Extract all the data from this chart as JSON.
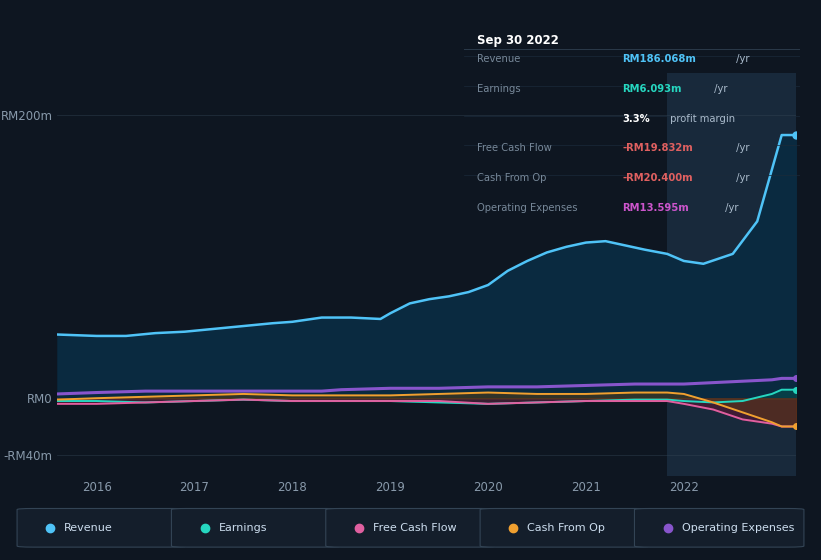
{
  "bg_color": "#0e1621",
  "plot_bg": "#0e1621",
  "highlight_bg": "#162030",
  "title": "Sep 30 2022",
  "ylim": [
    -55,
    230
  ],
  "ytick_positions": [
    -40,
    0,
    200
  ],
  "ytick_labels": [
    "-RM40m",
    "RM0",
    "RM200m"
  ],
  "xlim_start": 2015.6,
  "xlim_end": 2023.15,
  "xticks": [
    2016,
    2017,
    2018,
    2019,
    2020,
    2021,
    2022
  ],
  "highlight_x_start": 2021.83,
  "legend_items": [
    {
      "label": "Revenue",
      "color": "#4fc3f7"
    },
    {
      "label": "Earnings",
      "color": "#26d7c0"
    },
    {
      "label": "Free Cash Flow",
      "color": "#e060a0"
    },
    {
      "label": "Cash From Op",
      "color": "#f0a030"
    },
    {
      "label": "Operating Expenses",
      "color": "#8855cc"
    }
  ],
  "tooltip": {
    "title": "Sep 30 2022",
    "rows": [
      {
        "label": "Revenue",
        "value": "RM186.068m",
        "suffix": " /yr",
        "value_color": "#4fc3f7",
        "bold": true
      },
      {
        "label": "Earnings",
        "value": "RM6.093m",
        "suffix": " /yr",
        "value_color": "#26d7c0",
        "bold": true
      },
      {
        "label": "",
        "value": "3.3%",
        "suffix": " profit margin",
        "value_color": "#ffffff",
        "bold": true
      },
      {
        "label": "Free Cash Flow",
        "value": "-RM19.832m",
        "suffix": " /yr",
        "value_color": "#e06060",
        "bold": true
      },
      {
        "label": "Cash From Op",
        "value": "-RM20.400m",
        "suffix": " /yr",
        "value_color": "#e06060",
        "bold": true
      },
      {
        "label": "Operating Expenses",
        "value": "RM13.595m",
        "suffix": " /yr",
        "value_color": "#cc55cc",
        "bold": true
      }
    ]
  },
  "revenue_x": [
    2015.6,
    2016.0,
    2016.3,
    2016.6,
    2016.9,
    2017.2,
    2017.5,
    2017.8,
    2018.0,
    2018.1,
    2018.3,
    2018.6,
    2018.9,
    2019.0,
    2019.2,
    2019.4,
    2019.6,
    2019.8,
    2020.0,
    2020.2,
    2020.4,
    2020.6,
    2020.8,
    2021.0,
    2021.2,
    2021.4,
    2021.6,
    2021.83,
    2022.0,
    2022.2,
    2022.5,
    2022.75,
    2023.0,
    2023.15
  ],
  "revenue_y": [
    45,
    44,
    44,
    46,
    47,
    49,
    51,
    53,
    54,
    55,
    57,
    57,
    56,
    60,
    67,
    70,
    72,
    75,
    80,
    90,
    97,
    103,
    107,
    110,
    111,
    108,
    105,
    102,
    97,
    95,
    102,
    125,
    186,
    186
  ],
  "earnings_x": [
    2015.6,
    2016.0,
    2016.5,
    2017.0,
    2017.5,
    2018.0,
    2018.5,
    2019.0,
    2019.5,
    2020.0,
    2020.5,
    2021.0,
    2021.5,
    2021.83,
    2022.0,
    2022.3,
    2022.6,
    2022.9,
    2023.0,
    2023.15
  ],
  "earnings_y": [
    -2,
    -2,
    -3,
    -2,
    -1,
    -2,
    -2,
    -2,
    -3,
    -4,
    -3,
    -2,
    -1,
    -1,
    -2,
    -3,
    -2,
    3,
    6,
    6
  ],
  "fcf_x": [
    2015.6,
    2016.0,
    2016.5,
    2017.0,
    2017.5,
    2018.0,
    2018.5,
    2019.0,
    2019.5,
    2020.0,
    2020.5,
    2021.0,
    2021.5,
    2021.83,
    2022.0,
    2022.3,
    2022.6,
    2022.9,
    2023.0,
    2023.15
  ],
  "fcf_y": [
    -4,
    -4,
    -3,
    -2,
    -1,
    -2,
    -2,
    -2,
    -2,
    -4,
    -3,
    -2,
    -2,
    -2,
    -4,
    -8,
    -15,
    -18,
    -20,
    -20
  ],
  "cfo_x": [
    2015.6,
    2016.0,
    2016.5,
    2017.0,
    2017.5,
    2018.0,
    2018.5,
    2019.0,
    2019.5,
    2020.0,
    2020.5,
    2021.0,
    2021.5,
    2021.83,
    2022.0,
    2022.3,
    2022.6,
    2022.9,
    2023.0,
    2023.15
  ],
  "cfo_y": [
    -1,
    0,
    1,
    2,
    3,
    2,
    2,
    2,
    3,
    4,
    3,
    3,
    4,
    4,
    3,
    -3,
    -10,
    -17,
    -20,
    -20
  ],
  "opex_x": [
    2015.6,
    2016.0,
    2016.5,
    2017.0,
    2017.5,
    2018.0,
    2018.3,
    2018.5,
    2019.0,
    2019.5,
    2020.0,
    2020.5,
    2021.0,
    2021.5,
    2021.83,
    2022.0,
    2022.3,
    2022.6,
    2022.9,
    2023.0,
    2023.15
  ],
  "opex_y": [
    3,
    4,
    5,
    5,
    5,
    5,
    5,
    6,
    7,
    7,
    8,
    8,
    9,
    10,
    10,
    10,
    11,
    12,
    13,
    14,
    14
  ]
}
